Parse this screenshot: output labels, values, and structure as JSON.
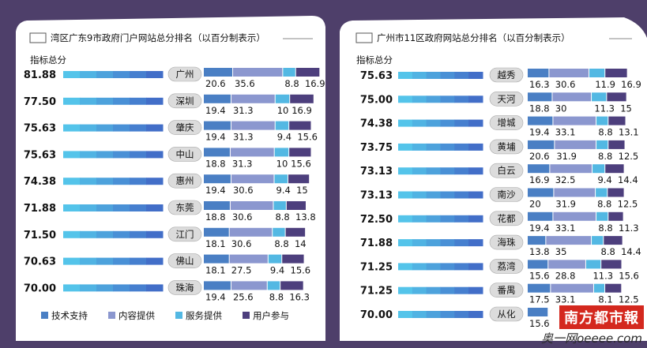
{
  "chart_data": [
    {
      "type": "bar",
      "title": "湾区广东9市政府门户网站总分排名（以百分制表示）",
      "ylabel": "指标总分",
      "categories": [
        "广州",
        "深圳",
        "肇庆",
        "中山",
        "惠州",
        "东莞",
        "江门",
        "佛山",
        "珠海"
      ],
      "totals": [
        "81.88",
        "77.50",
        "75.63",
        "75.63",
        "74.38",
        "71.88",
        "71.50",
        "70.63",
        "70.00"
      ],
      "series": [
        {
          "name": "技术支持",
          "values": [
            20.6,
            19.4,
            19.4,
            18.8,
            19.4,
            18.8,
            18.1,
            18.1,
            19.4
          ]
        },
        {
          "name": "内容提供",
          "values": [
            35.6,
            31.3,
            31.3,
            31.3,
            30.6,
            30.6,
            30.6,
            27.5,
            25.6
          ]
        },
        {
          "name": "服务提供",
          "values": [
            8.8,
            10,
            9.4,
            10,
            9.4,
            8.8,
            8.8,
            9.4,
            8.8
          ]
        },
        {
          "name": "用户参与",
          "values": [
            16.9,
            16.9,
            15.6,
            15.6,
            15,
            13.8,
            14,
            15.6,
            16.3
          ]
        }
      ],
      "value_labels": [
        [
          "20.6",
          "35.6",
          "8.8",
          "16.9"
        ],
        [
          "19.4",
          "31.3",
          "10",
          "16.9"
        ],
        [
          "19.4",
          "31.3",
          "9.4",
          "15.6"
        ],
        [
          "18.8",
          "31.3",
          "10",
          "15.6"
        ],
        [
          "19.4",
          "30.6",
          "9.4",
          "15"
        ],
        [
          "18.8",
          "30.6",
          "8.8",
          "13.8"
        ],
        [
          "18.1",
          "30.6",
          "8.8",
          "14"
        ],
        [
          "18.1",
          "27.5",
          "9.4",
          "15.6"
        ],
        [
          "19.4",
          "25.6",
          "8.8",
          "16.3"
        ]
      ]
    },
    {
      "type": "bar",
      "title": "广州市11区政府网站总分排名（以百分制表示）",
      "ylabel": "指标总分",
      "categories": [
        "越秀",
        "天河",
        "增城",
        "黄埔",
        "白云",
        "南沙",
        "花都",
        "海珠",
        "荔湾",
        "番禺",
        "从化"
      ],
      "totals": [
        "75.63",
        "75.00",
        "74.38",
        "73.75",
        "73.13",
        "73.13",
        "72.50",
        "71.88",
        "71.25",
        "71.25",
        "70.00"
      ],
      "series": [
        {
          "name": "技术支持",
          "values": [
            16.3,
            18.8,
            19.4,
            20.6,
            16.9,
            20,
            19.4,
            13.8,
            15.6,
            17.5,
            15.6
          ]
        },
        {
          "name": "内容提供",
          "values": [
            30.6,
            30,
            33.1,
            31.9,
            32.5,
            31.9,
            33.1,
            35,
            28.8,
            33.1,
            null
          ]
        },
        {
          "name": "服务提供",
          "values": [
            11.9,
            11.3,
            8.8,
            8.8,
            9.4,
            8.8,
            8.8,
            8.8,
            11.3,
            8.1,
            null
          ]
        },
        {
          "name": "用户参与",
          "values": [
            16.9,
            15,
            13.1,
            12.5,
            14.4,
            12.5,
            11.3,
            14.4,
            15.6,
            12.5,
            null
          ]
        }
      ],
      "value_labels": [
        [
          "16.3",
          "30.6",
          "11.9",
          "16.9"
        ],
        [
          "18.8",
          "30",
          "11.3",
          "15"
        ],
        [
          "19.4",
          "33.1",
          "8.8",
          "13.1"
        ],
        [
          "20.6",
          "31.9",
          "8.8",
          "12.5"
        ],
        [
          "16.9",
          "32.5",
          "9.4",
          "14.4"
        ],
        [
          "20",
          "31.9",
          "8.8",
          "12.5"
        ],
        [
          "19.4",
          "33.1",
          "8.8",
          "11.3"
        ],
        [
          "13.8",
          "35",
          "8.8",
          "14.4"
        ],
        [
          "15.6",
          "28.8",
          "11.3",
          "15.6"
        ],
        [
          "17.5",
          "33.1",
          "8.1",
          "12.5"
        ],
        [
          "15.6"
        ]
      ]
    }
  ],
  "legend": [
    "技术支持",
    "内容提供",
    "服务提供",
    "用户参与"
  ],
  "colors": {
    "tech": "#4a7fc4",
    "content": "#8b97cf",
    "service": "#53b8e3",
    "user": "#4d3f7d",
    "badge": "#dcdcdc",
    "page": "#4e3f6a",
    "panel": "#ffffff"
  },
  "brand": "南方都市報",
  "watermark": "奥一网oeeee.com"
}
